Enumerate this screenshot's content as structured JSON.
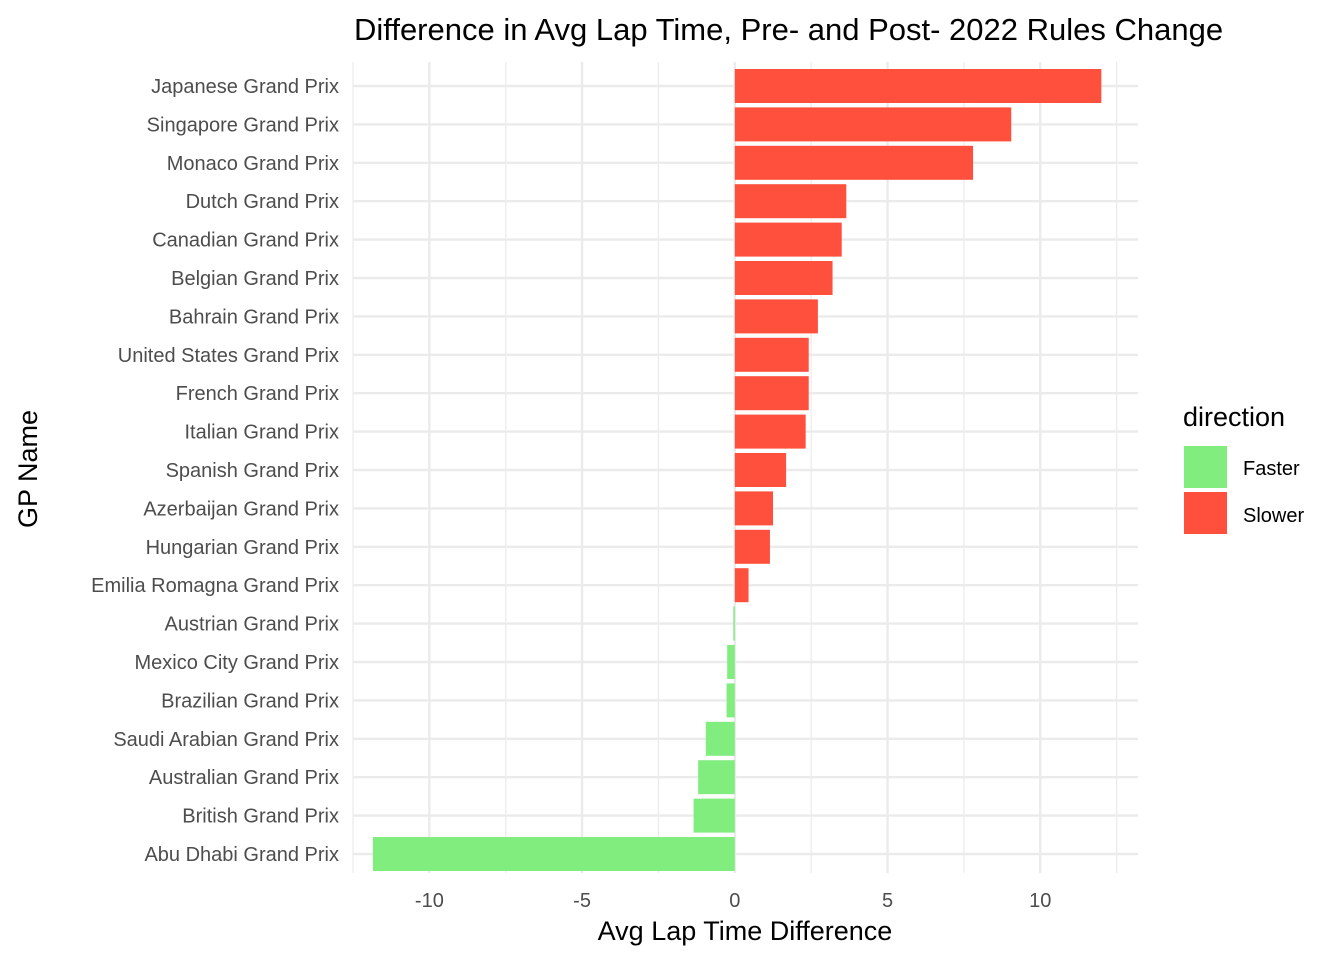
{
  "chart_data": {
    "type": "bar",
    "orientation": "horizontal",
    "title": "Difference in Avg Lap Time, Pre- and Post- 2022 Rules Change",
    "xlabel": "Avg Lap Time Difference",
    "ylabel": "GP Name",
    "xlim": [
      -12.5,
      13.2
    ],
    "x_ticks": [
      -10,
      -5,
      0,
      5,
      10
    ],
    "grid": true,
    "legend": {
      "title": "direction",
      "placement": "right",
      "entries": [
        {
          "label": "Faster",
          "color": "#81ED7E"
        },
        {
          "label": "Slower",
          "color": "#FF4F3D"
        }
      ]
    },
    "categories": [
      "Japanese Grand Prix",
      "Singapore Grand Prix",
      "Monaco Grand Prix",
      "Dutch Grand Prix",
      "Canadian Grand Prix",
      "Belgian Grand Prix",
      "Bahrain Grand Prix",
      "United States Grand Prix",
      "French Grand Prix",
      "Italian Grand Prix",
      "Spanish Grand Prix",
      "Azerbaijan Grand Prix",
      "Hungarian Grand Prix",
      "Emilia Romagna Grand Prix",
      "Austrian Grand Prix",
      "Mexico City Grand Prix",
      "Brazilian Grand Prix",
      "Saudi Arabian Grand Prix",
      "Australian Grand Prix",
      "British Grand Prix",
      "Abu Dhabi Grand Prix"
    ],
    "values": [
      12.0,
      9.05,
      7.8,
      3.65,
      3.5,
      3.2,
      2.72,
      2.42,
      2.42,
      2.32,
      1.68,
      1.25,
      1.15,
      0.45,
      -0.05,
      -0.25,
      -0.27,
      -0.95,
      -1.2,
      -1.35,
      -11.85
    ],
    "directions": [
      "Slower",
      "Slower",
      "Slower",
      "Slower",
      "Slower",
      "Slower",
      "Slower",
      "Slower",
      "Slower",
      "Slower",
      "Slower",
      "Slower",
      "Slower",
      "Slower",
      "Faster",
      "Faster",
      "Faster",
      "Faster",
      "Faster",
      "Faster",
      "Faster"
    ]
  }
}
